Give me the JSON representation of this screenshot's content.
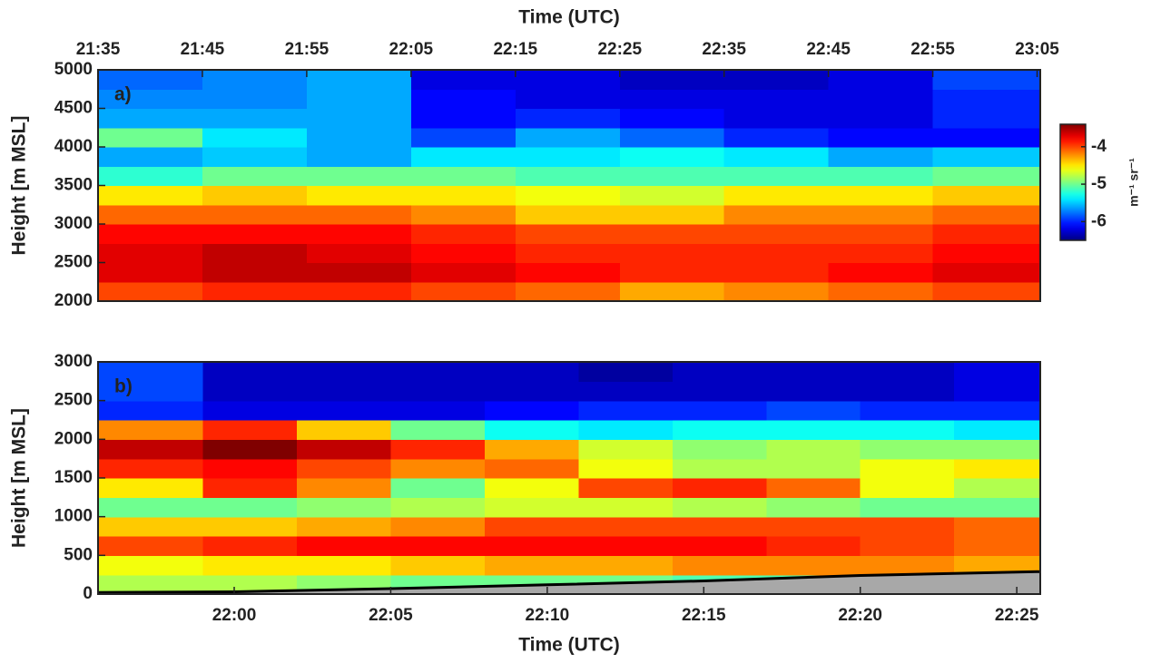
{
  "chart_data": [
    {
      "type": "heatmap",
      "panel_label": "a)",
      "xlabel": "Time (UTC)",
      "ylabel": "Height [m MSL]",
      "xaxis_position": "top",
      "colormap": "jet",
      "xlim": [
        1295,
        1385.3
      ],
      "ylim": [
        2000,
        5000
      ],
      "xticks": [
        {
          "value": 1295,
          "label": "21:35"
        },
        {
          "value": 1305,
          "label": "21:45"
        },
        {
          "value": 1315,
          "label": "21:55"
        },
        {
          "value": 1325,
          "label": "22:05"
        },
        {
          "value": 1335,
          "label": "22:15"
        },
        {
          "value": 1345,
          "label": "22:25"
        },
        {
          "value": 1355,
          "label": "22:35"
        },
        {
          "value": 1365,
          "label": "22:45"
        },
        {
          "value": 1375,
          "label": "22:55"
        },
        {
          "value": 1385,
          "label": "23:05"
        }
      ],
      "yticks": [
        2000,
        2500,
        3000,
        3500,
        4000,
        4500,
        5000
      ],
      "x_bins": [
        1295,
        1305,
        1315,
        1325,
        1335,
        1345,
        1355,
        1365,
        1375,
        1385.3
      ],
      "y_bins": [
        2000,
        2250,
        2500,
        2750,
        3000,
        3250,
        3500,
        3750,
        4000,
        4250,
        4500,
        4750,
        5000
      ],
      "z": [
        [
          -4.0,
          -3.9,
          -3.9,
          -4.0,
          -4.1,
          -4.3,
          -4.2,
          -4.1,
          -4.0
        ],
        [
          -3.7,
          -3.6,
          -3.6,
          -3.7,
          -3.8,
          -3.9,
          -3.9,
          -3.8,
          -3.7
        ],
        [
          -3.7,
          -3.6,
          -3.7,
          -3.8,
          -3.9,
          -3.9,
          -3.9,
          -3.9,
          -3.8
        ],
        [
          -3.8,
          -3.8,
          -3.8,
          -3.9,
          -4.0,
          -4.0,
          -4.0,
          -4.0,
          -3.9
        ],
        [
          -4.1,
          -4.1,
          -4.1,
          -4.2,
          -4.4,
          -4.4,
          -4.2,
          -4.2,
          -4.1
        ],
        [
          -4.5,
          -4.4,
          -4.5,
          -4.5,
          -4.6,
          -4.7,
          -4.5,
          -4.5,
          -4.4
        ],
        [
          -5.2,
          -5.0,
          -5.0,
          -5.0,
          -5.1,
          -5.1,
          -5.1,
          -5.1,
          -5.0
        ],
        [
          -5.6,
          -5.5,
          -5.6,
          -5.4,
          -5.4,
          -5.3,
          -5.4,
          -5.6,
          -5.5
        ],
        [
          -5.0,
          -5.4,
          -5.6,
          -5.9,
          -5.6,
          -5.8,
          -6.0,
          -6.1,
          -6.1
        ],
        [
          -5.6,
          -5.6,
          -5.6,
          -6.1,
          -6.0,
          -6.1,
          -6.2,
          -6.2,
          -6.0
        ],
        [
          -5.7,
          -5.7,
          -5.6,
          -6.1,
          -6.2,
          -6.2,
          -6.2,
          -6.2,
          -6.0
        ],
        [
          -5.8,
          -5.7,
          -5.6,
          -6.2,
          -6.2,
          -6.3,
          -6.3,
          -6.2,
          -5.9
        ]
      ],
      "colorbar": {
        "lim": [
          -6.5,
          -3.4
        ],
        "ticks": [
          -6,
          -5,
          -4
        ],
        "label": "m⁻¹ sr⁻¹"
      }
    },
    {
      "type": "heatmap",
      "panel_label": "b)",
      "xlabel": "Time (UTC)",
      "ylabel": "Height [m MSL]",
      "xaxis_position": "bottom",
      "colormap": "jet",
      "xlim": [
        1315.65,
        1345.75
      ],
      "ylim": [
        0,
        3000
      ],
      "xticks": [
        {
          "value": 1320,
          "label": "22:00"
        },
        {
          "value": 1325,
          "label": "22:05"
        },
        {
          "value": 1330,
          "label": "22:10"
        },
        {
          "value": 1335,
          "label": "22:15"
        },
        {
          "value": 1340,
          "label": "22:20"
        },
        {
          "value": 1345,
          "label": "22:25"
        }
      ],
      "yticks": [
        0,
        500,
        1000,
        1500,
        2000,
        2500,
        3000
      ],
      "x_bins": [
        1315.65,
        1319,
        1322,
        1325,
        1328,
        1331,
        1334,
        1337,
        1340,
        1343,
        1345.75
      ],
      "y_bins": [
        0,
        250,
        500,
        750,
        1000,
        1250,
        1500,
        1750,
        2000,
        2250,
        2500,
        2750,
        3000
      ],
      "z": [
        [
          -4.8,
          -4.8,
          -4.9,
          -5.0,
          -5.0,
          -5.0,
          -5.1,
          -5.1,
          -5.1,
          -5.1
        ],
        [
          -4.6,
          -4.5,
          -4.5,
          -4.4,
          -4.3,
          -4.3,
          -4.2,
          -4.2,
          -4.2,
          -4.3
        ],
        [
          -4.0,
          -3.9,
          -3.8,
          -3.8,
          -3.8,
          -3.8,
          -3.8,
          -3.9,
          -4.0,
          -4.1
        ],
        [
          -4.4,
          -4.4,
          -4.3,
          -4.2,
          -4.0,
          -4.0,
          -4.0,
          -4.0,
          -4.0,
          -4.1
        ],
        [
          -5.0,
          -5.0,
          -4.9,
          -4.8,
          -4.7,
          -4.7,
          -4.8,
          -4.9,
          -5.0,
          -5.0
        ],
        [
          -4.5,
          -3.9,
          -4.2,
          -5.0,
          -4.6,
          -4.0,
          -3.9,
          -4.1,
          -4.6,
          -4.8
        ],
        [
          -3.9,
          -3.8,
          -4.0,
          -4.2,
          -4.1,
          -4.6,
          -4.8,
          -4.8,
          -4.6,
          -4.5
        ],
        [
          -3.6,
          -3.3,
          -3.6,
          -3.9,
          -4.3,
          -4.7,
          -4.9,
          -4.8,
          -4.9,
          -4.9
        ],
        [
          -4.2,
          -3.9,
          -4.4,
          -5.0,
          -5.3,
          -5.4,
          -5.3,
          -5.3,
          -5.3,
          -5.4
        ],
        [
          -6.0,
          -6.2,
          -6.2,
          -6.2,
          -6.1,
          -6.0,
          -6.0,
          -5.9,
          -6.0,
          -6.0
        ],
        [
          -5.9,
          -6.3,
          -6.3,
          -6.3,
          -6.3,
          -6.3,
          -6.3,
          -6.3,
          -6.3,
          -6.2
        ],
        [
          -5.9,
          -6.3,
          -6.3,
          -6.3,
          -6.3,
          -6.4,
          -6.3,
          -6.3,
          -6.3,
          -6.2
        ]
      ],
      "surface": {
        "x": [
          1315.65,
          1320,
          1325,
          1330,
          1335,
          1340,
          1345.75
        ],
        "values": [
          20,
          30,
          70,
          120,
          170,
          240,
          290
        ],
        "color": "#a8a8a8",
        "line_color": "#000000"
      }
    }
  ]
}
